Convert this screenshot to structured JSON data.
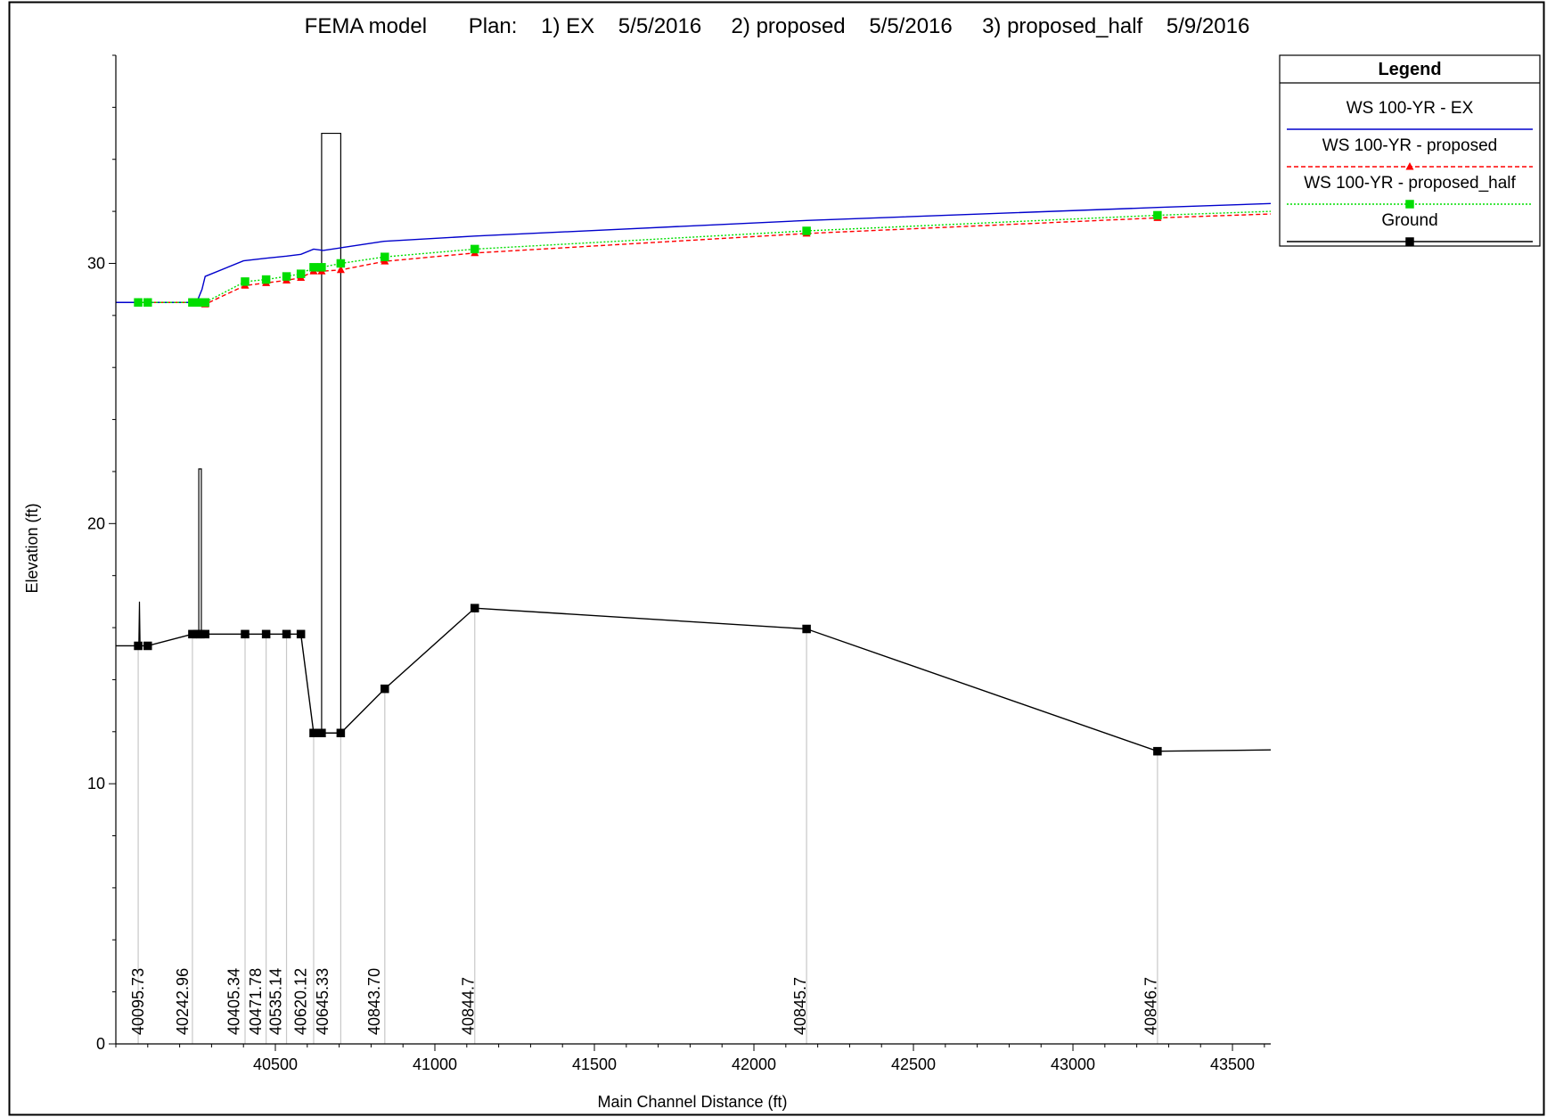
{
  "chart_data": {
    "type": "line",
    "title": "FEMA model       Plan:    1) EX    5/5/2016     2) proposed    5/5/2016     3) proposed_half    5/9/2016",
    "xlabel": "Main Channel Distance (ft)",
    "ylabel": "Elevation (ft)",
    "xlim": [
      40000,
      43620
    ],
    "ylim": [
      0,
      38
    ],
    "x_major_ticks": [
      40500,
      41000,
      41500,
      42000,
      42500,
      43000,
      43500
    ],
    "x_minor_step": 100,
    "y_major_ticks": [
      0,
      10,
      20,
      30
    ],
    "y_minor_step": 2,
    "grid": false,
    "legend_position": "top-right",
    "legend_title": "Legend",
    "colors": {
      "ws_ex": "#0000cc",
      "ws_proposed": "#ff0000",
      "ws_proposed_half": "#00dd00",
      "ground": "#000000",
      "station_line": "#c8c8c8"
    },
    "series": [
      {
        "name": "WS  100-YR - EX",
        "key": "ws_ex",
        "style": "solid",
        "marker": "none",
        "points": [
          [
            40000,
            28.5
          ],
          [
            40240,
            28.5
          ],
          [
            40255,
            28.55
          ],
          [
            40270,
            29.0
          ],
          [
            40280,
            29.5
          ],
          [
            40400,
            30.1
          ],
          [
            40470,
            30.2
          ],
          [
            40535,
            30.28
          ],
          [
            40580,
            30.35
          ],
          [
            40620,
            30.55
          ],
          [
            40650,
            30.5
          ],
          [
            40705,
            30.6
          ],
          [
            40840,
            30.85
          ],
          [
            41125,
            31.05
          ],
          [
            42165,
            31.65
          ],
          [
            43265,
            32.15
          ],
          [
            43620,
            32.3
          ]
        ]
      },
      {
        "name": "WS  100-YR - proposed",
        "key": "ws_proposed",
        "style": "dashed",
        "marker": "triangle",
        "points": [
          [
            40070,
            28.5
          ],
          [
            40100,
            28.5
          ],
          [
            40240,
            28.5
          ],
          [
            40255,
            28.5
          ],
          [
            40265,
            28.47
          ],
          [
            40280,
            28.43
          ],
          [
            40405,
            29.15
          ],
          [
            40471,
            29.25
          ],
          [
            40535,
            29.35
          ],
          [
            40580,
            29.45
          ],
          [
            40620,
            29.7
          ],
          [
            40645,
            29.7
          ],
          [
            40705,
            29.75
          ],
          [
            40843,
            30.08
          ],
          [
            41125,
            30.4
          ],
          [
            42165,
            31.15
          ],
          [
            43265,
            31.75
          ],
          [
            43620,
            31.9
          ]
        ]
      },
      {
        "name": "WS  100-YR - proposed_half",
        "key": "ws_proposed_half",
        "style": "dotted",
        "marker": "square",
        "points": [
          [
            40070,
            28.5
          ],
          [
            40100,
            28.5
          ],
          [
            40240,
            28.5
          ],
          [
            40255,
            28.5
          ],
          [
            40265,
            28.5
          ],
          [
            40280,
            28.5
          ],
          [
            40405,
            29.3
          ],
          [
            40471,
            29.38
          ],
          [
            40535,
            29.5
          ],
          [
            40580,
            29.6
          ],
          [
            40620,
            29.85
          ],
          [
            40645,
            29.85
          ],
          [
            40705,
            30.0
          ],
          [
            40843,
            30.25
          ],
          [
            41125,
            30.55
          ],
          [
            42165,
            31.25
          ],
          [
            43265,
            31.85
          ],
          [
            43620,
            32.0
          ]
        ]
      },
      {
        "name": "Ground",
        "key": "ground",
        "style": "solid",
        "marker": "square",
        "points": [
          [
            40000,
            15.3
          ],
          [
            40070,
            15.3
          ],
          [
            40100,
            15.3
          ],
          [
            40240,
            15.75
          ],
          [
            40255,
            15.75
          ],
          [
            40265,
            15.75
          ],
          [
            40280,
            15.75
          ],
          [
            40405,
            15.75
          ],
          [
            40471,
            15.75
          ],
          [
            40535,
            15.75
          ],
          [
            40580,
            15.75
          ],
          [
            40620,
            11.95
          ],
          [
            40645,
            11.95
          ],
          [
            40705,
            11.95
          ],
          [
            40843,
            13.65
          ],
          [
            41125,
            16.75
          ],
          [
            42165,
            15.95
          ],
          [
            43265,
            11.25
          ],
          [
            43620,
            11.3
          ]
        ],
        "marker_x": [
          40070,
          40100,
          40240,
          40255,
          40265,
          40280,
          40405,
          40471,
          40535,
          40580,
          40620,
          40645,
          40705,
          40843,
          41125,
          42165,
          43265
        ]
      }
    ],
    "structures": [
      {
        "name": "pier-spike",
        "outline": [
          [
            40072,
            15.3
          ],
          [
            40074,
            17.0
          ],
          [
            40076,
            15.3
          ]
        ]
      },
      {
        "name": "small-bridge-deck",
        "outline": [
          [
            40260,
            15.75
          ],
          [
            40260,
            22.1
          ],
          [
            40268,
            22.1
          ],
          [
            40268,
            15.75
          ]
        ]
      },
      {
        "name": "large-bridge-deck",
        "outline": [
          [
            40645,
            11.95
          ],
          [
            40645,
            35.0
          ],
          [
            40705,
            35.0
          ],
          [
            40705,
            11.95
          ]
        ]
      }
    ],
    "stations": [
      {
        "label": "40095.73",
        "x": 40070
      },
      {
        "label": "40242.96",
        "x": 40210
      },
      {
        "label": "40405.34",
        "x": 40370
      },
      {
        "label": "40471.78",
        "x": 40438
      },
      {
        "label": "40535.14",
        "x": 40502
      },
      {
        "label": "40620.12",
        "x": 40580
      },
      {
        "label": "40645.33",
        "x": 40648
      },
      {
        "label": "40843.70",
        "x": 40810
      },
      {
        "label": "40844.7",
        "x": 41105
      },
      {
        "label": "40845.7",
        "x": 42145
      },
      {
        "label": "40846.7",
        "x": 43245
      }
    ],
    "station_lines_x": [
      40070,
      40240,
      40405,
      40471,
      40535,
      40620,
      40705,
      40843,
      41125,
      42165,
      43265
    ]
  }
}
